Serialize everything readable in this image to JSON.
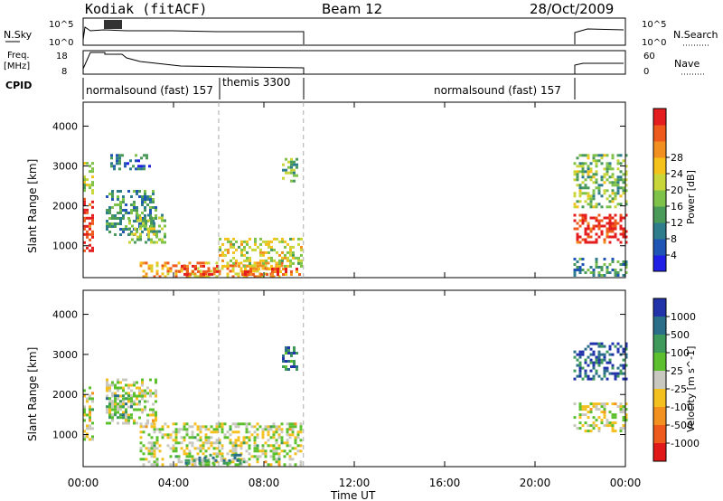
{
  "header": {
    "station": "Kodiak (fitACF)",
    "beam": "Beam 12",
    "date": "28/Oct/2009"
  },
  "status_panels": {
    "nsky": {
      "label": "N.Sky",
      "ticks": [
        "10^5",
        "10^0"
      ]
    },
    "nsearch": {
      "label": "N.Search",
      "ticks": [
        "10^5",
        "10^0"
      ]
    },
    "freq": {
      "label_line1": "Freq.",
      "label_line2": "[MHz]",
      "ticks": [
        "18",
        "8"
      ]
    },
    "nave": {
      "label": "Nave",
      "ticks": [
        "60",
        "0"
      ]
    },
    "cpid": {
      "label": "CPID"
    },
    "programs": [
      {
        "name": "normalsound (fast) 157",
        "start_h": 0.0,
        "end_h": 6.0
      },
      {
        "name": "themis 3300",
        "start_h": 6.0,
        "end_h": 9.75
      },
      {
        "name": "normalsound (fast) 157",
        "start_h": 21.6,
        "end_h": 24.0
      }
    ]
  },
  "chart_data": [
    {
      "type": "heatmap",
      "title": "Power",
      "ylabel": "Slant Range [km]",
      "xlabel": "Time UT",
      "x_range_h": [
        0,
        24
      ],
      "ylim": [
        200,
        4600
      ],
      "yticks": [
        "1000",
        "2000",
        "3000",
        "4000"
      ],
      "xticks": [
        "00:00",
        "04:00",
        "08:00",
        "12:00",
        "16:00",
        "20:00",
        "00:00"
      ],
      "colorbar": {
        "label": "Power [dB]",
        "ticks": [
          "4",
          "8",
          "12",
          "16",
          "20",
          "24",
          "28"
        ],
        "colors": [
          "#1f1fe6",
          "#1f55b4",
          "#2e7d8c",
          "#4a9a5a",
          "#7fc24a",
          "#c8d63a",
          "#f4c21a",
          "#f19020",
          "#ee5a1c",
          "#e41e1e"
        ]
      },
      "echo_regions": [
        {
          "t0": 0.0,
          "t1": 0.45,
          "r0": 900,
          "r1": 2200,
          "level": 0.95
        },
        {
          "t0": 0.0,
          "t1": 0.45,
          "r0": 2300,
          "r1": 3100,
          "level": 0.5
        },
        {
          "t0": 1.0,
          "t1": 3.2,
          "r0": 1300,
          "r1": 2400,
          "level": 0.3
        },
        {
          "t0": 1.2,
          "t1": 3.0,
          "r0": 2900,
          "r1": 3300,
          "level": 0.25
        },
        {
          "t0": 2.0,
          "t1": 3.6,
          "r0": 1100,
          "r1": 1800,
          "level": 0.45
        },
        {
          "t0": 2.5,
          "t1": 8.8,
          "r0": 200,
          "r1": 600,
          "level": 0.7
        },
        {
          "t0": 4.2,
          "t1": 6.0,
          "r0": 250,
          "r1": 520,
          "level": 0.95
        },
        {
          "t0": 6.0,
          "t1": 9.7,
          "r0": 500,
          "r1": 1200,
          "level": 0.55
        },
        {
          "t0": 7.0,
          "t1": 9.6,
          "r0": 250,
          "r1": 450,
          "level": 0.85
        },
        {
          "t0": 8.8,
          "t1": 9.5,
          "r0": 2600,
          "r1": 3200,
          "level": 0.4
        },
        {
          "t0": 21.7,
          "t1": 24.0,
          "r0": 1100,
          "r1": 1800,
          "level": 0.95
        },
        {
          "t0": 21.7,
          "t1": 24.0,
          "r0": 2000,
          "r1": 3300,
          "level": 0.45
        },
        {
          "t0": 21.7,
          "t1": 24.0,
          "r0": 250,
          "r1": 700,
          "level": 0.3
        }
      ]
    },
    {
      "type": "heatmap",
      "title": "Velocity",
      "ylabel": "Slant Range [km]",
      "xlabel": "Time UT",
      "x_range_h": [
        0,
        24
      ],
      "ylim": [
        200,
        4600
      ],
      "yticks": [
        "1000",
        "2000",
        "3000",
        "4000"
      ],
      "xticks": [
        "00:00",
        "04:00",
        "08:00",
        "12:00",
        "16:00",
        "20:00",
        "00:00"
      ],
      "colorbar": {
        "label": "Velocity [m s^-1]",
        "ticks": [
          "1000",
          "500",
          "100",
          "25",
          "-25",
          "-100",
          "-500",
          "-1000"
        ],
        "colors": [
          "#2233aa",
          "#2a6e8a",
          "#3d9a5a",
          "#5cc02e",
          "#c8c8c0",
          "#f4c020",
          "#f29020",
          "#ee5a1c",
          "#e01818"
        ]
      },
      "echo_regions": [
        {
          "t0": 0.0,
          "t1": 0.45,
          "r0": 900,
          "r1": 2200,
          "level": 0.5
        },
        {
          "t0": 1.0,
          "t1": 3.2,
          "r0": 1300,
          "r1": 2400,
          "level": 0.5
        },
        {
          "t0": 1.0,
          "t1": 2.2,
          "r0": 1400,
          "r1": 2000,
          "level": 0.35
        },
        {
          "t0": 2.5,
          "t1": 9.7,
          "r0": 250,
          "r1": 1300,
          "level": 0.5
        },
        {
          "t0": 4.5,
          "t1": 7.0,
          "r0": 250,
          "r1": 520,
          "level": 0.3
        },
        {
          "t0": 8.8,
          "t1": 9.5,
          "r0": 2600,
          "r1": 3200,
          "level": 0.2
        },
        {
          "t0": 21.7,
          "t1": 24.0,
          "r0": 1100,
          "r1": 1800,
          "level": 0.5
        },
        {
          "t0": 21.7,
          "t1": 24.0,
          "r0": 2400,
          "r1": 3300,
          "level": 0.15
        }
      ]
    }
  ]
}
